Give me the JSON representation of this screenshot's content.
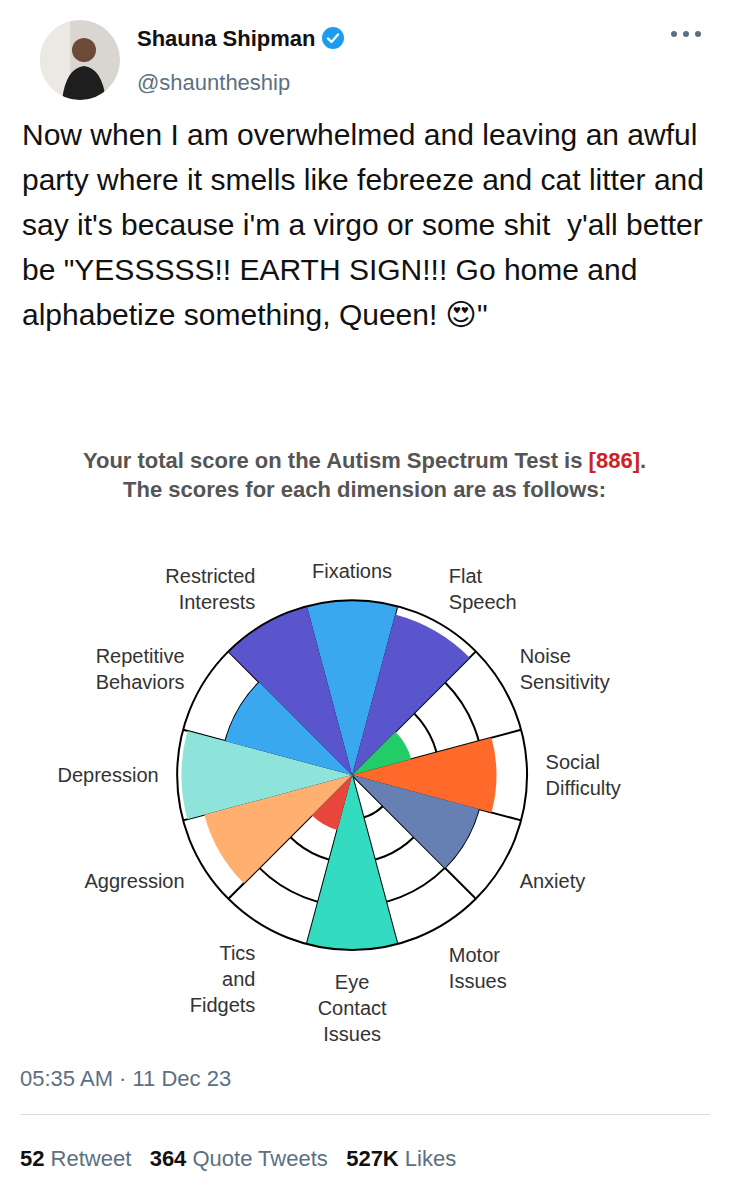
{
  "tweet": {
    "name": "Shauna Shipman",
    "handle": "@shauntheship",
    "text": "Now when I am overwhelmed and leaving an awful party where it smells like febreeze and cat litter and say it's because i'm a virgo or some shit  y'all better be \"YESSSSS!! EARTH SIGN!!! Go home and alphabetize something, Queen! 😍\"",
    "timestamp": "05:35 AM · 11 Dec 23",
    "stats": [
      {
        "value": "52",
        "label": "Retweet"
      },
      {
        "value": "364",
        "label": "Quote Tweets"
      },
      {
        "value": "527K",
        "label": "Likes"
      }
    ]
  },
  "chart_data": {
    "type": "barpolar",
    "title": "Your total score on the Autism Spectrum Test is [886].",
    "title_highlight": "[886]",
    "subtitle": "The scores for each dimension are as follows:",
    "categories": [
      "Fixations",
      "Flat Speech",
      "Noise Sensitivity",
      "Social Difficulty",
      "Anxiety",
      "Motor Issues",
      "Eye Contact Issues",
      "Tics and Fidgets",
      "Aggression",
      "Depression",
      "Repetitive Behaviors",
      "Restricted Interests"
    ],
    "values": [
      4,
      3.8,
      1.4,
      3.3,
      3,
      0,
      4,
      1.3,
      3.5,
      3.9,
      3,
      4
    ],
    "colors": [
      "#3aa8ef",
      "#5a55cc",
      "#22cc66",
      "#ff6a2a",
      "#6680b3",
      "#ffffff",
      "#33dcc0",
      "#e8453c",
      "#ffb070",
      "#8ee3da",
      "#3aa8ef",
      "#5a55cc"
    ],
    "ylim": [
      0,
      4
    ],
    "yticks": [
      1,
      2,
      3,
      4
    ],
    "grid": true,
    "tick_labels": "x"
  }
}
